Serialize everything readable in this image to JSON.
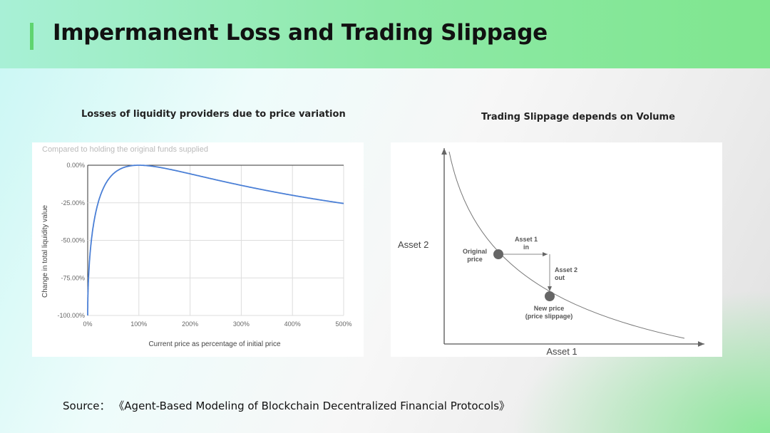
{
  "slide": {
    "title": "Impermanent Loss and Trading Slippage",
    "source": "Source： 《Agent-Based Modeling of Blockchain Decentralized Financial Protocols》",
    "accent": "#5fd46f"
  },
  "chart_data": [
    {
      "type": "line",
      "title": "Losses of liquidity providers due to price variation",
      "subtitle": "Compared to holding the original funds supplied",
      "xlabel": "Current price as percentage of initial price",
      "ylabel": "Change in total liquidity value",
      "xlim": [
        0,
        500
      ],
      "ylim": [
        -100,
        0
      ],
      "xticks": [
        "0%",
        "100%",
        "200%",
        "300%",
        "400%",
        "500%"
      ],
      "yticks": [
        "0.00%",
        "-25.00%",
        "-50.00%",
        "-75.00%",
        "-100.00%"
      ],
      "grid": true,
      "color": "#4a7fd6",
      "x": [
        0,
        1,
        2,
        5,
        10,
        20,
        30,
        50,
        75,
        100,
        150,
        200,
        300,
        400,
        500
      ],
      "y": [
        -100,
        -80.2,
        -72.3,
        -57.4,
        -42.5,
        -25.5,
        -15.7,
        -5.7,
        -1.0,
        0,
        -2.0,
        -5.7,
        -13.4,
        -20.0,
        -25.5
      ]
    },
    {
      "type": "diagram",
      "title": "Trading Slippage depends on Volume",
      "xlabel": "Asset 1",
      "ylabel": "Asset 2",
      "labels": {
        "original": [
          "Original",
          "price"
        ],
        "asset1_in": [
          "Asset 1",
          "in"
        ],
        "asset2_out": [
          "Asset 2",
          "out"
        ],
        "new": [
          "New price",
          "(price slippage)"
        ]
      }
    }
  ]
}
